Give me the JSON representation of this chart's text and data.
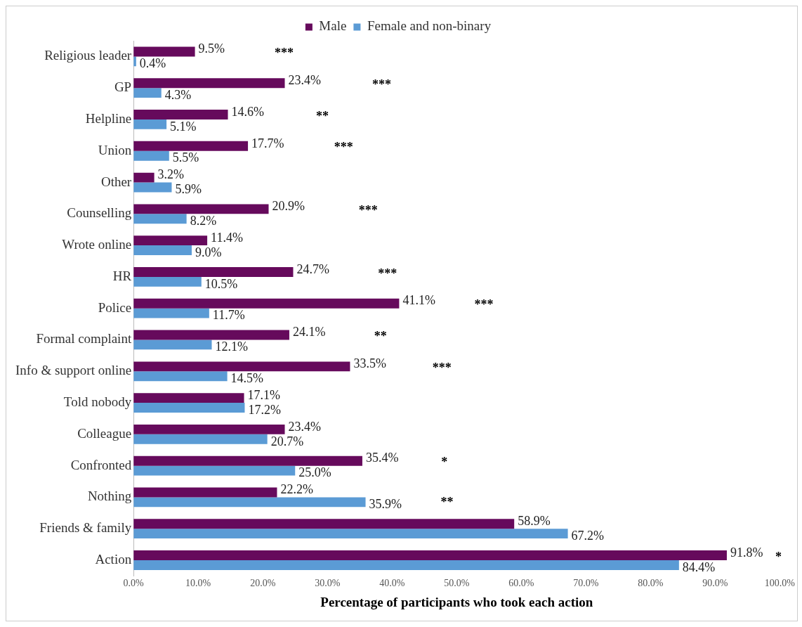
{
  "chart_data": {
    "type": "bar",
    "orientation": "horizontal",
    "xlabel": "Percentage of participants who took each action",
    "categories": [
      "Religious leader",
      "GP",
      "Helpline",
      "Union",
      "Other",
      "Counselling",
      "Wrote online",
      "HR",
      "Police",
      "Formal complaint",
      "Info & support online",
      "Told nobody",
      "Colleague",
      "Confronted",
      "Nothing",
      "Friends & family",
      "Action"
    ],
    "series": [
      {
        "name": "Male",
        "color": "#660a5c",
        "values": [
          9.5,
          23.4,
          14.6,
          17.7,
          3.2,
          20.9,
          11.4,
          24.7,
          41.1,
          24.1,
          33.5,
          17.1,
          23.4,
          35.4,
          22.2,
          58.9,
          91.8
        ],
        "value_labels": [
          "9.5%",
          "23.4%",
          "14.6%",
          "17.7%",
          "3.2%",
          "20.9%",
          "11.4%",
          "24.7%",
          "41.1%",
          "24.1%",
          "33.5%",
          "17.1%",
          "23.4%",
          "35.4%",
          "22.2%",
          "58.9%",
          "91.8%"
        ]
      },
      {
        "name": "Female and non-binary",
        "color": "#5b9bd5",
        "values": [
          0.4,
          4.3,
          5.1,
          5.5,
          5.9,
          8.2,
          9.0,
          10.5,
          11.7,
          12.1,
          14.5,
          17.2,
          20.7,
          25.0,
          35.9,
          67.2,
          84.4
        ],
        "value_labels": [
          "0.4%",
          "4.3%",
          "5.1%",
          "5.5%",
          "5.9%",
          "8.2%",
          "9.0%",
          "10.5%",
          "11.7%",
          "12.1%",
          "14.5%",
          "17.2%",
          "20.7%",
          "25.0%",
          "35.9%",
          "67.2%",
          "84.4%"
        ]
      }
    ],
    "xlim": [
      0,
      100
    ],
    "xticks": [
      {
        "value": 0,
        "label": "0.0%"
      },
      {
        "value": 10,
        "label": "10.0%"
      },
      {
        "value": 20,
        "label": "20.0%"
      },
      {
        "value": 30,
        "label": "30.0%"
      },
      {
        "value": 40,
        "label": "40.0%"
      },
      {
        "value": 50,
        "label": "50.0%"
      },
      {
        "value": 60,
        "label": "60.0%"
      },
      {
        "value": 70,
        "label": "70.0%"
      },
      {
        "value": 80,
        "label": "80.0%"
      },
      {
        "value": 90,
        "label": "90.0%"
      },
      {
        "value": 100,
        "label": "100.0%"
      }
    ],
    "annotations": [
      "***",
      "***",
      "**",
      "***",
      "***",
      "***",
      "***",
      "**",
      "***",
      "*",
      "**",
      "*"
    ],
    "grid": false,
    "legend": "top"
  }
}
